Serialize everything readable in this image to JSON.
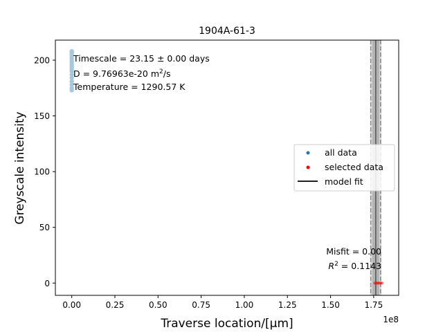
{
  "chart_data": {
    "type": "scatter",
    "title": "1904A-61-3",
    "xlabel": "Traverse location/[μm]",
    "ylabel": "Greyscale intensity",
    "x_offset_label": "1e8",
    "xlim": [
      -0.095,
      1.895
    ],
    "ylim": [
      -11,
      218
    ],
    "x_ticks": [
      0.0,
      0.25,
      0.5,
      0.75,
      1.0,
      1.25,
      1.5,
      1.75
    ],
    "x_tick_labels": [
      "0.00",
      "0.25",
      "0.50",
      "0.75",
      "1.00",
      "1.25",
      "1.50",
      "1.75"
    ],
    "y_ticks": [
      0,
      50,
      100,
      150,
      200
    ],
    "y_tick_labels": [
      "0",
      "50",
      "100",
      "150",
      "200"
    ],
    "grid": false,
    "legend_position": "center-right",
    "legend": [
      {
        "label": "all data",
        "marker": "dot",
        "color": "#1f77b4"
      },
      {
        "label": "selected data",
        "marker": "dot",
        "color": "#ff0000"
      },
      {
        "label": "model fit",
        "marker": "line",
        "color": "#000000"
      }
    ],
    "annotations_top": [
      "Timescale = 23.15 ± 0.00 days",
      "D = 9.76963e-20 m",
      "/s",
      "Temperature = 1290.57 K"
    ],
    "superscript_2": "2",
    "annotations_bottom": {
      "misfit": "Misfit = 0.00",
      "r2_prefix": "R",
      "r2_value": " = 0.1143"
    },
    "series": [
      {
        "name": "all data",
        "color": "#a6c8de",
        "x": [
          0.0,
          0.0,
          0.0,
          0.0,
          0.0,
          0.0,
          0.0,
          0.0,
          0.0,
          0.0,
          0.0,
          0.0,
          0.0,
          0.0,
          0.0,
          0.0,
          0.0
        ],
        "y": [
          173,
          175,
          178,
          181,
          184,
          187,
          190,
          192,
          194,
          196,
          198,
          200,
          202,
          204,
          206,
          207,
          208
        ]
      },
      {
        "name": "selected data",
        "color": "#ff0000",
        "x": [
          1.755,
          1.76,
          1.765,
          1.77,
          1.775,
          1.78,
          1.785,
          1.79,
          1.795,
          1.8
        ],
        "y": [
          0,
          0,
          0,
          0,
          0,
          0,
          0,
          0,
          0,
          0
        ]
      }
    ],
    "shaded_regions": [
      {
        "x0": 1.73,
        "x1": 1.795,
        "color": "#d8d8d8"
      },
      {
        "x0": 1.742,
        "x1": 1.782,
        "color": "#b3b3b3"
      }
    ],
    "dashed_lines": [
      1.733,
      1.79
    ],
    "model_fit_x": 1.762
  }
}
